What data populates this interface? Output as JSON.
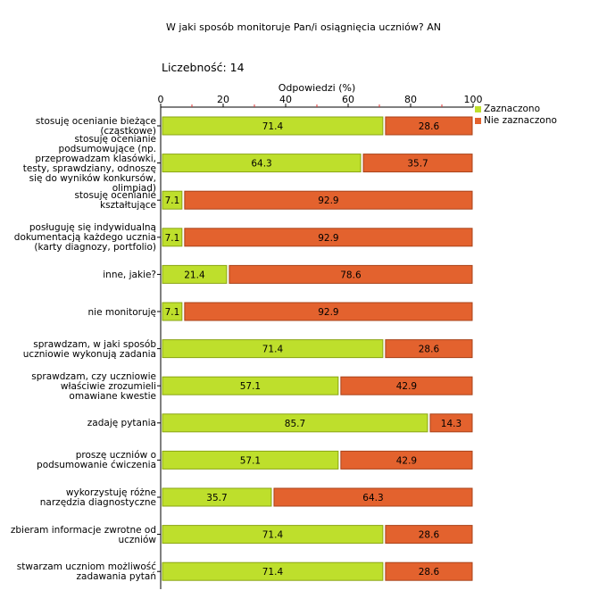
{
  "header": {
    "title": "W jaki sposób monitoruje Pan/i osiągnięcia uczniów?  AN",
    "count_label": "Liczebność:  14"
  },
  "chart_data": {
    "type": "bar",
    "orientation": "horizontal",
    "stacked": true,
    "title": "W jaki sposób monitoruje Pan/i osiągnięcia uczniów?  AN",
    "xlabel": "Odpowiedzi (%)",
    "xlim": [
      0,
      100
    ],
    "xticks": [
      "0",
      "20",
      "40",
      "60",
      "80",
      "100"
    ],
    "categories": [
      "stosuję ocenianie bieżące\n(cząstkowe)",
      "stosuję ocenianie\npodsumowujące (np.\nprzeprowadzam klasówki,\ntesty, sprawdziany, odnoszę\nsię do wyników konkursów,\nolimpiad)",
      "stosuję ocenianie\nkształtujące",
      "posługuję się indywidualną\ndokumentacją każdego ucznia\n(karty diagnozy, portfolio)",
      "inne, jakie?",
      "nie monitoruję",
      "sprawdzam, w jaki sposób\nuczniowie wykonują zadania",
      "sprawdzam, czy uczniowie\nwłaściwie zrozumieli\nomawiane kwestie",
      "zadaję pytania",
      "proszę uczniów o\npodsumowanie ćwiczenia",
      "wykorzystuję różne\nnarzędzia diagnostyczne",
      "zbieram informacje zwrotne od\nuczniów",
      "stwarzam uczniom możliwość\nzadawania pytań"
    ],
    "series": [
      {
        "name": "Zaznaczono",
        "color": "#bedf2c",
        "values": [
          71.4,
          64.3,
          7.1,
          7.1,
          21.4,
          7.1,
          71.4,
          57.1,
          85.7,
          57.1,
          35.7,
          71.4,
          71.4
        ]
      },
      {
        "name": "Nie zaznaczono",
        "color": "#e3622e",
        "values": [
          28.6,
          35.7,
          92.9,
          92.9,
          78.6,
          92.9,
          28.6,
          42.9,
          14.3,
          42.9,
          64.3,
          28.6,
          28.6
        ]
      }
    ],
    "legend": "top-right"
  }
}
